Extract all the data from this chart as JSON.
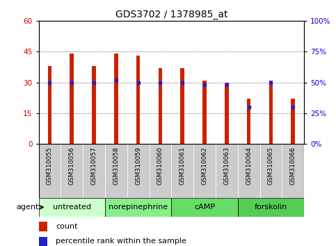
{
  "title": "GDS3702 / 1378985_at",
  "samples": [
    "GSM310055",
    "GSM310056",
    "GSM310057",
    "GSM310058",
    "GSM310059",
    "GSM310060",
    "GSM310061",
    "GSM310062",
    "GSM310063",
    "GSM310064",
    "GSM310065",
    "GSM310066"
  ],
  "counts": [
    38,
    44,
    38,
    44,
    43,
    37,
    37,
    31,
    30,
    22,
    31,
    22
  ],
  "percentiles": [
    50,
    50,
    50,
    52,
    50,
    50,
    50,
    48,
    48,
    30,
    50,
    30
  ],
  "bar_color": "#cc2200",
  "dot_color": "#2222cc",
  "left_ylim": [
    0,
    60
  ],
  "left_yticks": [
    0,
    15,
    30,
    45,
    60
  ],
  "right_ylim": [
    0,
    100
  ],
  "right_yticks": [
    0,
    25,
    50,
    75,
    100
  ],
  "right_yticklabels": [
    "0%",
    "25%",
    "50%",
    "75%",
    "100%"
  ],
  "groups": [
    {
      "label": "untreated",
      "start": 0,
      "end": 2,
      "color": "#ccffcc"
    },
    {
      "label": "norepinephrine",
      "start": 3,
      "end": 5,
      "color": "#88ee88"
    },
    {
      "label": "cAMP",
      "start": 6,
      "end": 8,
      "color": "#66dd66"
    },
    {
      "label": "forskolin",
      "start": 9,
      "end": 11,
      "color": "#55cc55"
    }
  ],
  "agent_label": "agent",
  "legend_count_label": "count",
  "legend_pct_label": "percentile rank within the sample",
  "bar_width": 0.18,
  "plot_bg": "#ffffff",
  "title_fontsize": 10,
  "axis_color_left": "#cc0000",
  "axis_color_right": "#0000cc",
  "sample_box_color": "#cccccc",
  "tick_fontsize": 7.5,
  "legend_fontsize": 8
}
